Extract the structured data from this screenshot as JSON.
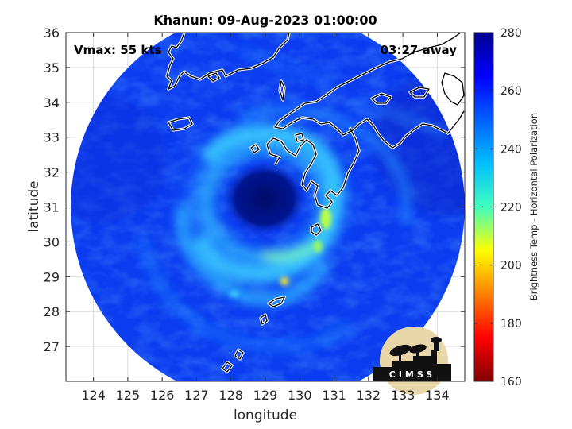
{
  "title": "Khanun: 09-Aug-2023 01:00:00",
  "vmax_label": "Vmax: 55 kts",
  "away_label": "03:27 away",
  "xlabel": "longitude",
  "ylabel": "latitude",
  "colorbar": {
    "label": "Brightness Temp - Horizontal Polarization",
    "ticks": [
      "160",
      "180",
      "200",
      "220",
      "240",
      "260",
      "280"
    ],
    "range": [
      160,
      280
    ],
    "colors": [
      "#7f0000",
      "#ff0000",
      "#ffff00",
      "#00ffff",
      "#0080ff",
      "#0000ff",
      "#00008f"
    ]
  },
  "map": {
    "lon_range": [
      123.2,
      134.8
    ],
    "lat_range": [
      26.0,
      36.0
    ],
    "lon_ticks": [
      "124",
      "125",
      "126",
      "127",
      "128",
      "129",
      "130",
      "131",
      "132",
      "133",
      "134"
    ],
    "lat_ticks": [
      "27",
      "28",
      "29",
      "30",
      "31",
      "32",
      "33",
      "34",
      "35",
      "36"
    ],
    "storm_center": [
      129.3,
      31.2
    ],
    "eye_brightness_temp": 280,
    "swath_background_temp": 265
  },
  "logo": {
    "text": "CIMSS"
  }
}
